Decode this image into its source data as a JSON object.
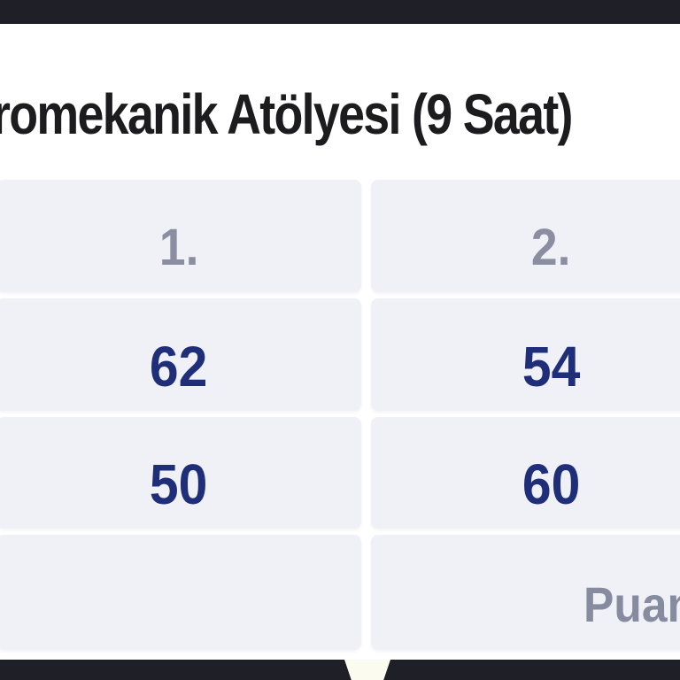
{
  "title": "romekanik Atölyesi (9 Saat)",
  "table": {
    "headers": [
      "1.",
      "2."
    ],
    "rows": [
      [
        "62",
        "54"
      ],
      [
        "50",
        "60"
      ]
    ],
    "footer": [
      "",
      "Puan"
    ]
  },
  "colors": {
    "letterbox_bar": "#1f1f28",
    "cell_background": "#f0f1f7",
    "value_text": "#1f2e78",
    "muted_text": "#8a8ea0",
    "title_text": "#1c1c1e",
    "notch": "#fcfbf0"
  },
  "chart_data": {
    "type": "table",
    "title": "romekanik Atölyesi (9 Saat)",
    "columns": [
      "1.",
      "2."
    ],
    "rows": [
      [
        62,
        54
      ],
      [
        50,
        60
      ]
    ],
    "footer_label": "Puan",
    "layout": {
      "grid": "off",
      "note": "two-column score table, cropped at left and right edges"
    }
  }
}
